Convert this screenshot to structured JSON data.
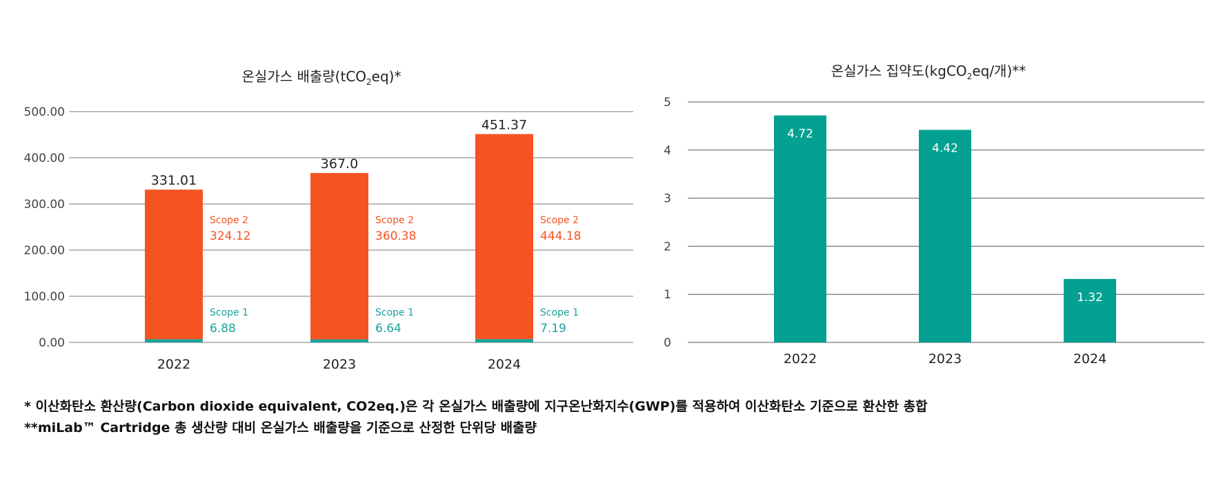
{
  "colors": {
    "scope2": "#f55422",
    "scope1": "#1aa39a",
    "teal_bar": "#04a092",
    "grid": "#7a7a7a"
  },
  "chart_data": [
    {
      "type": "bar",
      "title_main": "온실가스 배출량(tCO",
      "title_sub": "2",
      "title_end": "eq)*",
      "categories": [
        "2022",
        "2023",
        "2024"
      ],
      "series": [
        {
          "name": "Scope 2",
          "values": [
            324.12,
            360.38,
            444.18
          ]
        },
        {
          "name": "Scope 1",
          "values": [
            6.88,
            6.64,
            7.19
          ]
        }
      ],
      "totals": [
        "331.01",
        "367.0",
        "451.37"
      ],
      "value_labels": {
        "Scope 2": [
          "324.12",
          "360.38",
          "444.18"
        ],
        "Scope 1": [
          "6.88",
          "6.64",
          "7.19"
        ]
      },
      "ticks": [
        "0.00",
        "100.00",
        "200.00",
        "300.00",
        "400.00",
        "500.00"
      ],
      "ylim": [
        0,
        500
      ],
      "stacked": true
    },
    {
      "type": "bar",
      "title_main": "온실가스 집약도(kgCO",
      "title_sub": "2",
      "title_end": "eq/개)**",
      "categories": [
        "2022",
        "2023",
        "2024"
      ],
      "values": [
        4.72,
        4.42,
        1.32
      ],
      "value_labels": [
        "4.72",
        "4.42",
        "1.32"
      ],
      "ticks": [
        "0",
        "1",
        "2",
        "3",
        "4",
        "5"
      ],
      "ylim": [
        0,
        5
      ]
    }
  ],
  "footnotes": [
    "* 이산화탄소 환산량(Carbon dioxide equivalent, CO2eq.)은 각 온실가스 배출량에 지구온난화지수(GWP)를 적용하여 이산화탄소 기준으로 환산한 총합",
    "**miLab™ Cartridge 총 생산량 대비 온실가스 배출량을 기준으로 산정한 단위당 배출량"
  ]
}
